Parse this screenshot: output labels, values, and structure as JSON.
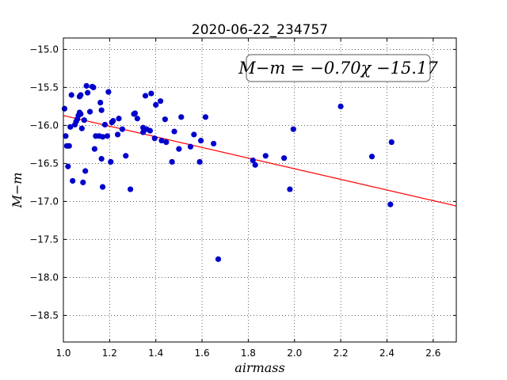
{
  "chart_data": {
    "type": "scatter",
    "title": "2020-06-22_234757",
    "xlabel": "airmass",
    "ylabel": "M−m",
    "xlim": [
      1.0,
      2.7
    ],
    "ylim": [
      -18.85,
      -14.85
    ],
    "y_inverted": true,
    "grid": true,
    "xticks": [
      "1.0",
      "1.2",
      "1.4",
      "1.6",
      "1.8",
      "2.0",
      "2.2",
      "2.4",
      "2.6"
    ],
    "yticks": [
      "−15.0",
      "−15.5",
      "−16.0",
      "−16.5",
      "−17.0",
      "−17.5",
      "−18.0",
      "−18.5"
    ],
    "annotation": "M−m = −0.70χ −15.17",
    "fit": {
      "slope": -0.7,
      "intercept": -15.17,
      "color": "#ff0000"
    },
    "point_color": "#0000cc",
    "points": [
      [
        1.005,
        -15.78
      ],
      [
        1.01,
        -16.14
      ],
      [
        1.015,
        -16.27
      ],
      [
        1.02,
        -16.54
      ],
      [
        1.025,
        -16.27
      ],
      [
        1.03,
        -16.02
      ],
      [
        1.035,
        -15.6
      ],
      [
        1.04,
        -16.73
      ],
      [
        1.05,
        -15.99
      ],
      [
        1.055,
        -15.95
      ],
      [
        1.06,
        -15.92
      ],
      [
        1.065,
        -15.87
      ],
      [
        1.07,
        -15.62
      ],
      [
        1.07,
        -15.83
      ],
      [
        1.075,
        -15.6
      ],
      [
        1.075,
        -15.85
      ],
      [
        1.08,
        -16.04
      ],
      [
        1.085,
        -16.75
      ],
      [
        1.09,
        -15.93
      ],
      [
        1.095,
        -16.6
      ],
      [
        1.1,
        -15.48
      ],
      [
        1.105,
        -15.57
      ],
      [
        1.115,
        -15.82
      ],
      [
        1.125,
        -15.49
      ],
      [
        1.13,
        -15.5
      ],
      [
        1.135,
        -16.31
      ],
      [
        1.14,
        -16.14
      ],
      [
        1.155,
        -16.14
      ],
      [
        1.16,
        -15.7
      ],
      [
        1.165,
        -15.8
      ],
      [
        1.165,
        -16.44
      ],
      [
        1.17,
        -16.81
      ],
      [
        1.17,
        -16.15
      ],
      [
        1.18,
        -15.99
      ],
      [
        1.19,
        -16.14
      ],
      [
        1.195,
        -15.56
      ],
      [
        1.205,
        -16.48
      ],
      [
        1.21,
        -15.96
      ],
      [
        1.215,
        -15.94
      ],
      [
        1.235,
        -16.12
      ],
      [
        1.24,
        -15.91
      ],
      [
        1.255,
        -16.05
      ],
      [
        1.27,
        -16.4
      ],
      [
        1.29,
        -16.84
      ],
      [
        1.305,
        -15.85
      ],
      [
        1.31,
        -15.84
      ],
      [
        1.32,
        -15.91
      ],
      [
        1.345,
        -16.09
      ],
      [
        1.345,
        -16.03
      ],
      [
        1.355,
        -15.61
      ],
      [
        1.36,
        -16.05
      ],
      [
        1.375,
        -16.07
      ],
      [
        1.38,
        -15.58
      ],
      [
        1.395,
        -16.17
      ],
      [
        1.4,
        -15.73
      ],
      [
        1.42,
        -15.68
      ],
      [
        1.425,
        -16.2
      ],
      [
        1.44,
        -15.92
      ],
      [
        1.445,
        -16.22
      ],
      [
        1.47,
        -16.48
      ],
      [
        1.48,
        -16.08
      ],
      [
        1.5,
        -16.31
      ],
      [
        1.51,
        -15.89
      ],
      [
        1.55,
        -16.28
      ],
      [
        1.565,
        -16.12
      ],
      [
        1.59,
        -16.48
      ],
      [
        1.595,
        -16.2
      ],
      [
        1.615,
        -15.89
      ],
      [
        1.65,
        -16.24
      ],
      [
        1.67,
        -17.76
      ],
      [
        1.82,
        -16.46
      ],
      [
        1.83,
        -16.52
      ],
      [
        1.875,
        -16.4
      ],
      [
        1.955,
        -16.43
      ],
      [
        1.98,
        -16.84
      ],
      [
        1.995,
        -16.05
      ],
      [
        2.2,
        -15.75
      ],
      [
        2.335,
        -16.41
      ],
      [
        2.415,
        -17.04
      ],
      [
        2.42,
        -16.22
      ]
    ]
  }
}
